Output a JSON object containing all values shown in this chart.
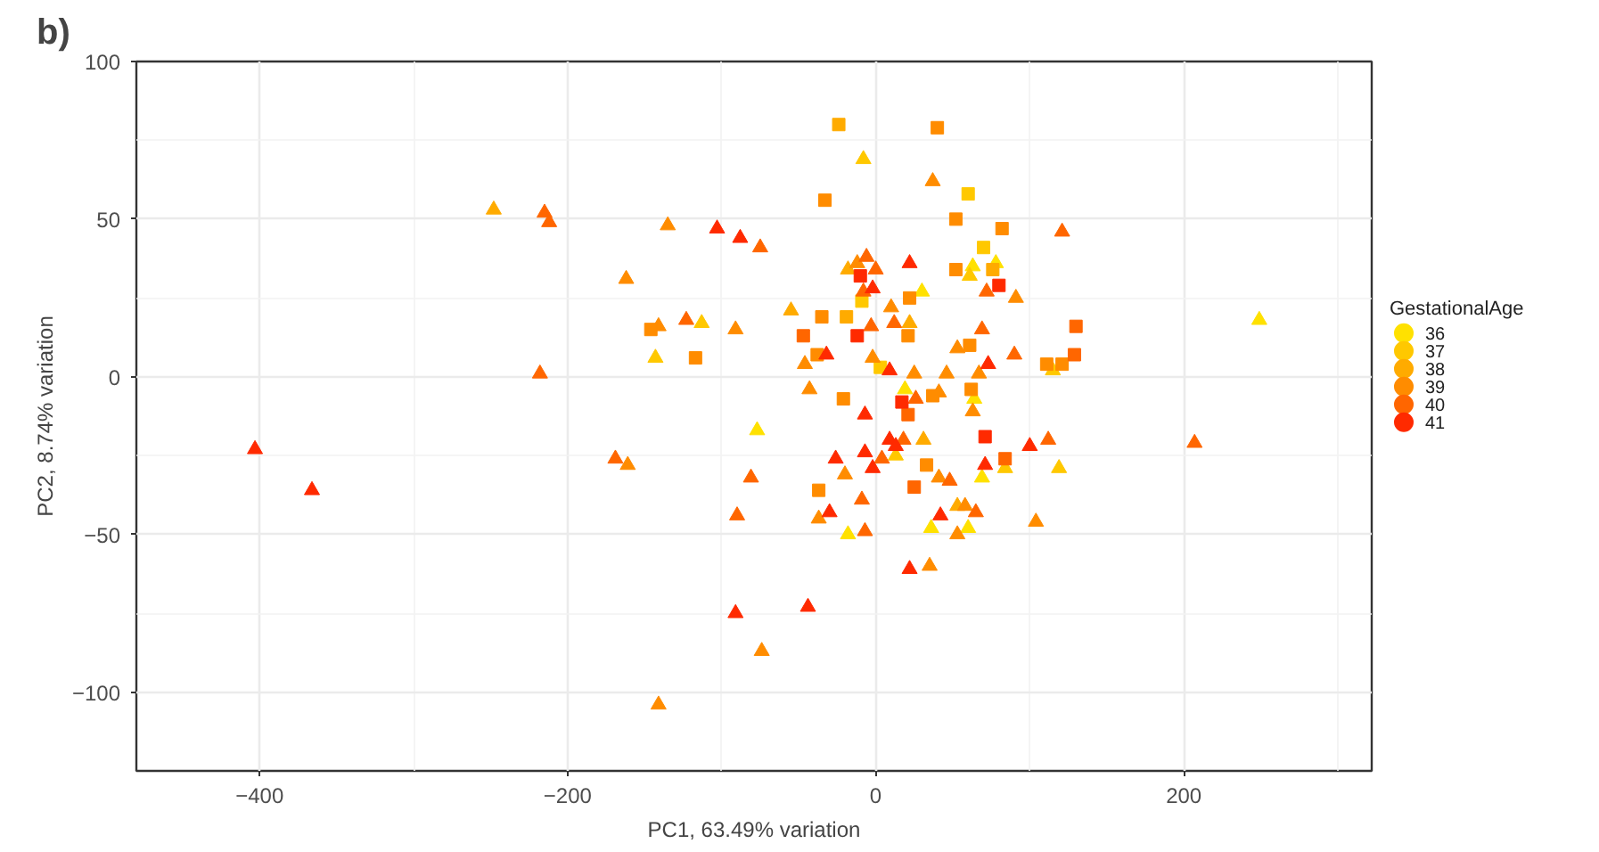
{
  "chart_data": {
    "type": "scatter",
    "title": "b)",
    "xlabel": "PC1, 63.49% variation",
    "ylabel": "PC2, 8.74% variation",
    "legend_title": "GestationalAge",
    "xlim": [
      -480,
      322
    ],
    "ylim": [
      -125,
      100
    ],
    "xticks": [
      -400,
      -200,
      0,
      200
    ],
    "yticks": [
      -100,
      -50,
      0,
      50,
      100
    ],
    "grid": true,
    "legend": "right",
    "series": [
      {
        "name": "36",
        "color": "#ffe100",
        "marker": [
          "triangle",
          "triangle",
          "triangle",
          "triangle",
          "triangle",
          "triangle",
          "triangle",
          "triangle",
          "triangle",
          "triangle",
          "triangle"
        ],
        "x": [
          63,
          78,
          30,
          19,
          64,
          -77,
          69,
          -18,
          36,
          60,
          249
        ],
        "values": [
          35,
          36,
          27,
          -4,
          -7,
          -17,
          -32,
          -50,
          -48,
          -48,
          18
        ]
      },
      {
        "name": "37",
        "color": "#ffc800",
        "marker": [
          "triangle",
          "triangle",
          "triangle",
          "triangle",
          "triangle",
          "triangle",
          "triangle",
          "triangle",
          "triangle",
          "square",
          "square",
          "square",
          "square"
        ],
        "x": [
          -113,
          -143,
          -8,
          61,
          15,
          13,
          84,
          119,
          115,
          60,
          70,
          -9,
          3
        ],
        "values": [
          17,
          6,
          69,
          32,
          null,
          -25,
          -29,
          -29,
          2,
          58,
          41,
          24,
          3
        ]
      },
      {
        "name": "38",
        "color": "#ffab00",
        "marker": [
          "triangle",
          "triangle",
          "triangle",
          "triangle",
          "triangle",
          "triangle",
          "square",
          "square",
          "square"
        ],
        "x": [
          -248,
          -18,
          -55,
          22,
          31,
          53,
          -24,
          -19,
          76
        ],
        "values": [
          53,
          34,
          21,
          17,
          -20,
          -41,
          80,
          19,
          34
        ]
      },
      {
        "name": "39",
        "color": "#ff8c00",
        "marker": [
          "triangle",
          "triangle",
          "triangle",
          "triangle",
          "triangle",
          "triangle",
          "triangle",
          "triangle",
          "triangle",
          "triangle",
          "triangle",
          "triangle",
          "triangle",
          "triangle",
          "triangle",
          "triangle",
          "triangle",
          "triangle",
          "triangle",
          "triangle",
          "triangle",
          "triangle",
          "triangle",
          "triangle",
          "triangle",
          "triangle",
          "triangle",
          "square",
          "square",
          "square",
          "square",
          "square",
          "square",
          "square",
          "square",
          "square",
          "square",
          "square",
          "square",
          "square",
          "square",
          "square",
          "square",
          "square",
          "square",
          "square"
        ],
        "x": [
          -135,
          -162,
          -141,
          -161,
          -141,
          37,
          91,
          -12,
          10,
          -91,
          -46,
          -2,
          25,
          53,
          67,
          46,
          -43,
          41,
          63,
          -20,
          41,
          -37,
          58,
          104,
          53,
          35,
          -74,
          -146,
          -117,
          -33,
          40,
          52,
          82,
          52,
          22,
          -35,
          21,
          -38,
          61,
          111,
          121,
          -21,
          37,
          62,
          33,
          -37
        ],
        "values": [
          48,
          31,
          16,
          -28,
          -104,
          62,
          25,
          36,
          22,
          15,
          4,
          6,
          1,
          9,
          1,
          1,
          -4,
          -5,
          -11,
          -31,
          -32,
          -45,
          -41,
          -46,
          -50,
          -60,
          -87,
          15,
          6,
          56,
          79,
          50,
          47,
          34,
          25,
          19,
          13,
          7,
          10,
          4,
          4,
          -7,
          -6,
          -4,
          -28,
          -36
        ]
      },
      {
        "name": "40",
        "color": "#ff6600",
        "marker": [
          "triangle",
          "triangle",
          "triangle",
          "triangle",
          "triangle",
          "triangle",
          "triangle",
          "triangle",
          "triangle",
          "triangle",
          "triangle",
          "triangle",
          "triangle",
          "triangle",
          "triangle",
          "triangle",
          "triangle",
          "triangle",
          "triangle",
          "triangle",
          "triangle",
          "triangle",
          "triangle",
          "triangle",
          "triangle",
          "triangle",
          "square",
          "square",
          "square",
          "square",
          "square",
          "square"
        ],
        "x": [
          -215,
          -212,
          -123,
          -218,
          -169,
          -75,
          121,
          72,
          -6,
          0,
          -8,
          -3,
          12,
          69,
          90,
          26,
          18,
          112,
          4,
          48,
          -81,
          -9,
          -90,
          65,
          -7,
          207,
          -47,
          21,
          84,
          25,
          130,
          129
        ],
        "values": [
          52,
          49,
          18,
          1,
          -26,
          41,
          46,
          27,
          38,
          34,
          27,
          16,
          17,
          15,
          7,
          -7,
          -20,
          -20,
          -26,
          -33,
          -32,
          -39,
          -44,
          -43,
          -49,
          -21,
          13,
          -12,
          -26,
          -35,
          16,
          7
        ]
      },
      {
        "name": "41",
        "color": "#ff2a00",
        "marker": [
          "triangle",
          "triangle",
          "triangle",
          "triangle",
          "triangle",
          "triangle",
          "triangle",
          "triangle",
          "triangle",
          "triangle",
          "triangle",
          "triangle",
          "triangle",
          "triangle",
          "triangle",
          "triangle",
          "triangle",
          "triangle",
          "triangle",
          "triangle",
          "triangle",
          "triangle",
          "square",
          "square",
          "square",
          "square",
          "square"
        ],
        "x": [
          -103,
          -403,
          -366,
          -88,
          22,
          -2,
          -32,
          9,
          73,
          -7,
          9,
          13,
          100,
          -26,
          -7,
          -2,
          71,
          -30,
          42,
          22,
          -91,
          -44,
          -10,
          80,
          -12,
          17,
          71
        ],
        "values": [
          47,
          -23,
          -36,
          44,
          36,
          28,
          7,
          2,
          4,
          -12,
          -20,
          -22,
          -22,
          -26,
          -24,
          -29,
          -28,
          -43,
          -44,
          -61,
          -75,
          -73,
          32,
          29,
          13,
          -8,
          -19
        ]
      }
    ]
  }
}
